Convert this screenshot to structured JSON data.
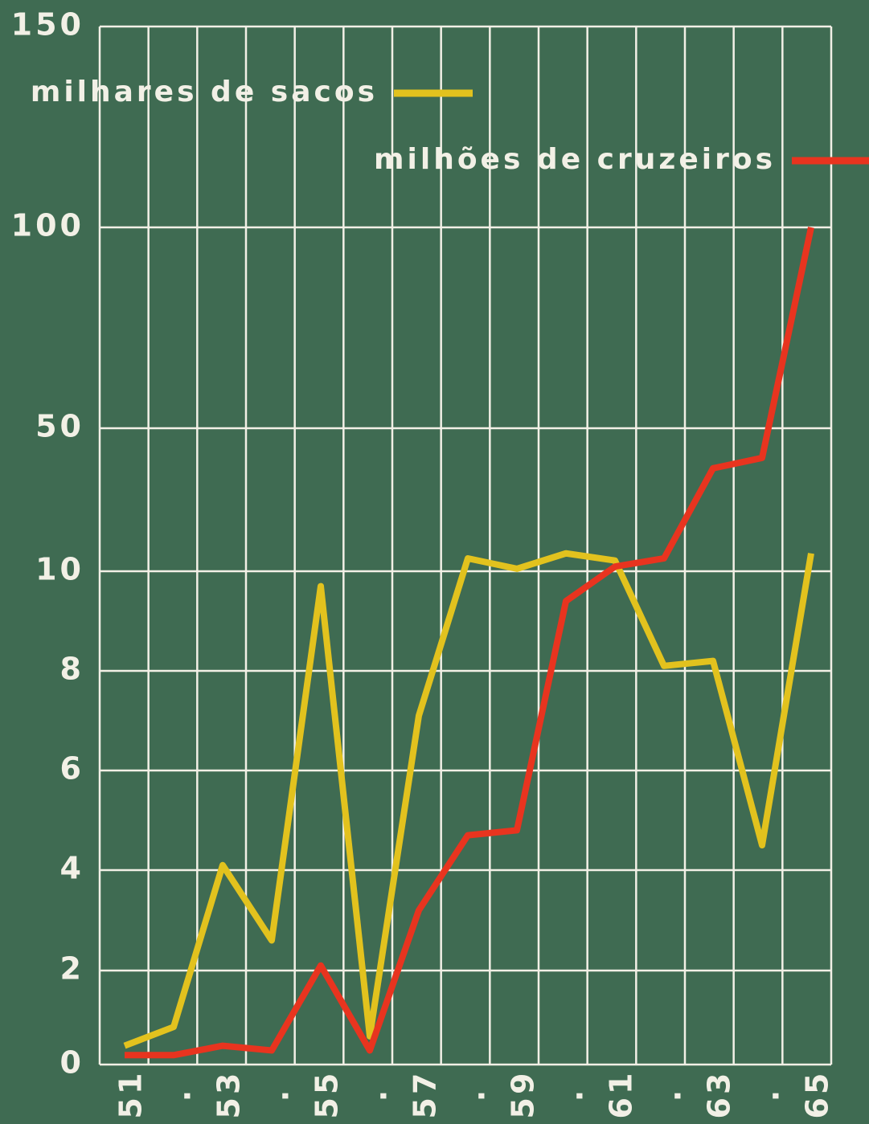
{
  "chart_data": {
    "type": "line",
    "categories": [
      "51",
      ".",
      "53",
      ".",
      "55",
      ".",
      "57",
      ".",
      "59",
      ".",
      "61",
      ".",
      "63",
      ".",
      "65"
    ],
    "series": [
      {
        "name": "milhares de sacos",
        "color": "#e2c21e",
        "values": [
          0.4,
          0.8,
          4.1,
          2.6,
          9.7,
          0.6,
          7.1,
          13.6,
          10.7,
          15,
          13,
          8.1,
          8.2,
          4.5,
          15
        ]
      },
      {
        "name": "milhões de cruzeiros",
        "color": "#e8341f",
        "values": [
          0.2,
          0.2,
          0.4,
          0.3,
          2.1,
          0.3,
          3.2,
          4.7,
          4.8,
          9.4,
          11.3,
          13.6,
          38.8,
          41.7,
          100
        ]
      }
    ],
    "ylim": [
      0,
      150
    ],
    "yticks": [
      0,
      2,
      4,
      6,
      8,
      10,
      50,
      100,
      150
    ],
    "grid": true
  }
}
